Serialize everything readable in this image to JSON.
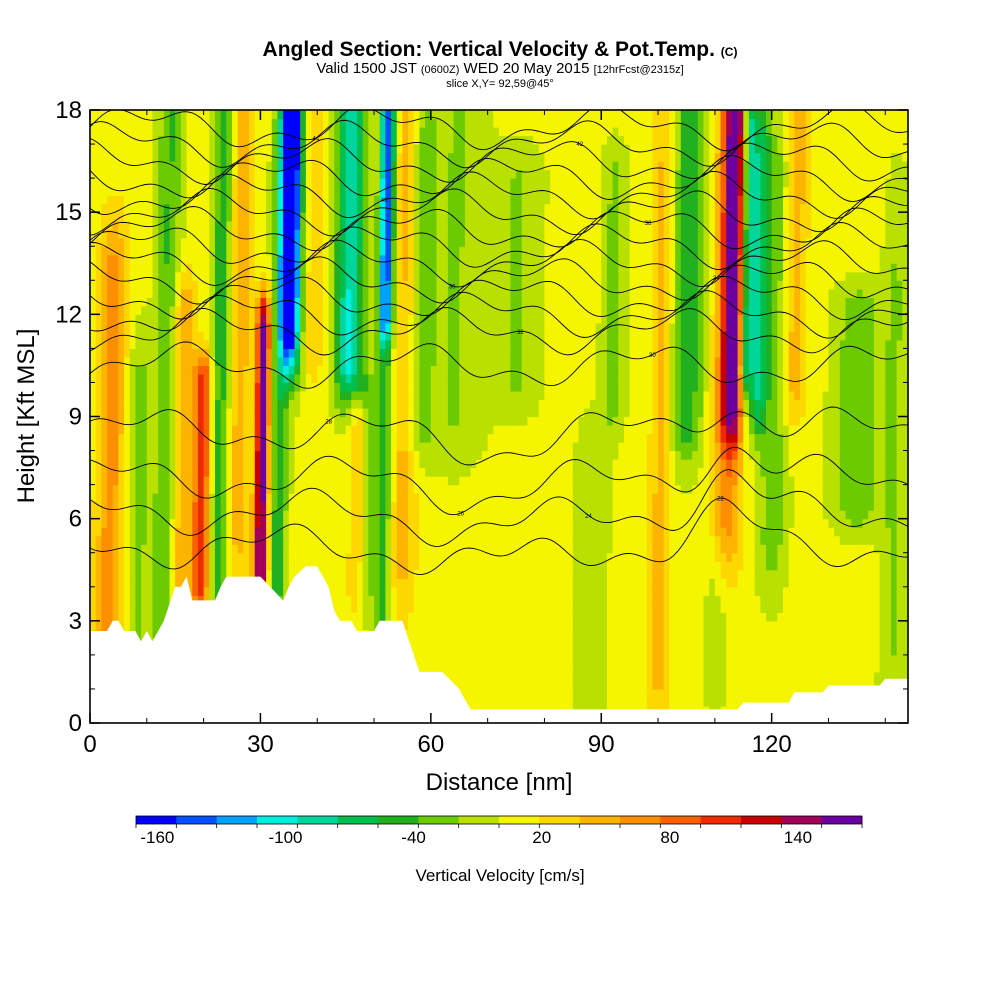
{
  "chart_data": {
    "type": "heatmap",
    "title": "Angled Section: Vertical Velocity & Pot.Temp.",
    "title_unit": "(C)",
    "subtitle": {
      "valid": "Valid 1500 JST",
      "utc": "(0600Z)",
      "date": "WED 20 May 2015",
      "forecast": "[12hrFcst@2315z]"
    },
    "slice": "slice X,Y= 92,59@45°",
    "xlabel": "Distance [nm]",
    "ylabel": "Height [Kft MSL]",
    "xlim": [
      0,
      144
    ],
    "ylim": [
      0,
      18
    ],
    "xticks": [
      0,
      30,
      60,
      90,
      120
    ],
    "yticks": [
      0,
      3,
      6,
      9,
      12,
      15,
      18
    ],
    "grid": false,
    "colorbar": {
      "label": "Vertical Velocity [cm/s]",
      "tick_labels": [
        "-160",
        "-100",
        "-40",
        "20",
        "80",
        "140"
      ],
      "tick_values": [
        -160,
        -100,
        -40,
        20,
        80,
        140
      ],
      "range": [
        -170,
        170
      ],
      "colors": [
        "#0000ff",
        "#0050ff",
        "#00a0ff",
        "#00eedd",
        "#00d59b",
        "#00bf4c",
        "#20b020",
        "#6ccb00",
        "#b8e000",
        "#f5f500",
        "#fdd800",
        "#fdb400",
        "#fc8f00",
        "#f86000",
        "#ee2a00",
        "#c80000",
        "#a0005a",
        "#6b009f"
      ]
    },
    "background_value": 5,
    "features": [
      {
        "x": 3,
        "w": 2.5,
        "y0": 0,
        "y1": 13,
        "v": 60
      },
      {
        "x": 8,
        "w": 2,
        "y0": 0,
        "y1": 10,
        "v": -30
      },
      {
        "x": 13,
        "w": 2,
        "y0": 3.5,
        "y1": 18,
        "v": -45
      },
      {
        "x": 16,
        "w": 2,
        "y0": 3.5,
        "y1": 12,
        "v": 50
      },
      {
        "x": 19.5,
        "w": 1.6,
        "y0": 4,
        "y1": 10,
        "v": 100
      },
      {
        "x": 22.5,
        "w": 1.8,
        "y0": 3.8,
        "y1": 18,
        "v": -55
      },
      {
        "x": 26,
        "w": 2,
        "y0": 6,
        "y1": 18,
        "v": 45
      },
      {
        "x": 30,
        "w": 1.2,
        "y0": 4.5,
        "y1": 11.5,
        "v": 160
      },
      {
        "x": 33,
        "w": 1.5,
        "y0": 4.5,
        "y1": 17,
        "v": -55
      },
      {
        "x": 35,
        "w": 1.3,
        "y0": 12,
        "y1": 18,
        "v": -160
      },
      {
        "x": 35.5,
        "w": 2.2,
        "y0": 11,
        "y1": 18,
        "v": -90
      },
      {
        "x": 39,
        "w": 2,
        "y0": 11,
        "y1": 18,
        "v": 35
      },
      {
        "x": 45.5,
        "w": 2.5,
        "y0": 10.5,
        "y1": 18,
        "v": -100
      },
      {
        "x": 48,
        "w": 1.8,
        "y0": 4,
        "y1": 9.5,
        "v": -45
      },
      {
        "x": 47,
        "w": 1.5,
        "y0": 4,
        "y1": 9,
        "v": 60
      },
      {
        "x": 51.5,
        "w": 1.5,
        "y0": 3.5,
        "y1": 18,
        "v": -50
      },
      {
        "x": 52,
        "w": 1.2,
        "y0": 12,
        "y1": 18,
        "v": -110
      },
      {
        "x": 55,
        "w": 2.5,
        "y0": 5,
        "y1": 18,
        "v": 40
      },
      {
        "x": 58,
        "w": 2,
        "y0": 9,
        "y1": 17,
        "v": -40
      },
      {
        "x": 64,
        "w": 5,
        "y0": 9,
        "y1": 18,
        "v": -25
      },
      {
        "x": 75,
        "w": 4,
        "y0": 10,
        "y1": 16,
        "v": -25
      },
      {
        "x": 92,
        "w": 2,
        "y0": 9.5,
        "y1": 16,
        "v": -30
      },
      {
        "x": 100,
        "w": 2,
        "y0": 2,
        "y1": 18,
        "v": 40
      },
      {
        "x": 105,
        "w": 3,
        "y0": 9,
        "y1": 18,
        "v": -55
      },
      {
        "x": 113,
        "w": 1.8,
        "y0": 9.5,
        "y1": 18,
        "v": 130
      },
      {
        "x": 112,
        "w": 2.8,
        "y0": 6,
        "y1": 18,
        "v": 60
      },
      {
        "x": 115.5,
        "w": 1.2,
        "y0": 10.5,
        "y1": 18,
        "v": -100
      },
      {
        "x": 117.5,
        "w": 1.5,
        "y0": 9.5,
        "y1": 17,
        "v": -70
      },
      {
        "x": 120,
        "w": 2.5,
        "y0": 5.5,
        "y1": 16,
        "v": -35
      },
      {
        "x": 124,
        "w": 2,
        "y0": 10,
        "y1": 18,
        "v": 45
      },
      {
        "x": 135,
        "w": 4,
        "y0": 6.5,
        "y1": 12,
        "v": -40
      },
      {
        "x": 141,
        "w": 2,
        "y0": 1,
        "y1": 14,
        "v": -25
      },
      {
        "x": 88,
        "w": 3,
        "y0": 0.5,
        "y1": 8,
        "v": -15
      },
      {
        "x": 110,
        "w": 2,
        "y0": 1,
        "y1": 5,
        "v": -20
      }
    ],
    "terrain": [
      [
        0,
        2.7
      ],
      [
        3,
        2.7
      ],
      [
        4,
        3
      ],
      [
        5,
        3
      ],
      [
        6,
        2.7
      ],
      [
        8,
        2.7
      ],
      [
        9,
        2.4
      ],
      [
        10,
        2.7
      ],
      [
        11,
        2.4
      ],
      [
        12,
        2.7
      ],
      [
        13,
        3
      ],
      [
        14,
        3.5
      ],
      [
        15,
        4
      ],
      [
        16,
        4
      ],
      [
        17,
        4.3
      ],
      [
        18,
        3.6
      ],
      [
        22,
        3.6
      ],
      [
        23,
        4
      ],
      [
        24,
        4.3
      ],
      [
        30,
        4.3
      ],
      [
        34,
        3.6
      ],
      [
        35,
        4
      ],
      [
        36,
        4.3
      ],
      [
        38,
        4.6
      ],
      [
        40,
        4.6
      ],
      [
        42,
        4
      ],
      [
        43,
        3.3
      ],
      [
        44,
        3
      ],
      [
        46,
        3
      ],
      [
        47,
        2.7
      ],
      [
        50,
        2.7
      ],
      [
        51,
        3
      ],
      [
        55,
        3
      ],
      [
        57,
        2
      ],
      [
        58,
        1.5
      ],
      [
        62,
        1.5
      ],
      [
        65,
        1
      ],
      [
        66,
        0.7
      ],
      [
        67,
        0.4
      ],
      [
        114,
        0.4
      ],
      [
        115,
        0.6
      ],
      [
        123,
        0.6
      ],
      [
        124,
        0.9
      ],
      [
        129,
        0.9
      ],
      [
        130,
        1.1
      ],
      [
        139,
        1.1
      ],
      [
        140,
        1.3
      ],
      [
        144,
        1.3
      ]
    ],
    "contours": [
      {
        "y0": 17.5,
        "label": "44"
      },
      {
        "y0": 17.0,
        "label": ""
      },
      {
        "y0": 16.5,
        "label": "42"
      },
      {
        "y0": 16.0,
        "label": ""
      },
      {
        "y0": 15.5,
        "label": "40"
      },
      {
        "y0": 15.0,
        "label": ""
      },
      {
        "y0": 14.5,
        "label": "38"
      },
      {
        "y0": 14.0,
        "label": ""
      },
      {
        "y0": 13.5,
        "label": "36"
      },
      {
        "y0": 13.0,
        "label": ""
      },
      {
        "y0": 12.5,
        "label": "34"
      },
      {
        "y0": 12.0,
        "label": ""
      },
      {
        "y0": 11.5,
        "label": "32"
      },
      {
        "y0": 10.5,
        "label": "30"
      },
      {
        "y0": 8.6,
        "label": "28"
      },
      {
        "y0": 7.2,
        "label": "26"
      },
      {
        "y0": 6.2,
        "label": "24"
      },
      {
        "y0": 5.2,
        "label": "22"
      }
    ]
  }
}
